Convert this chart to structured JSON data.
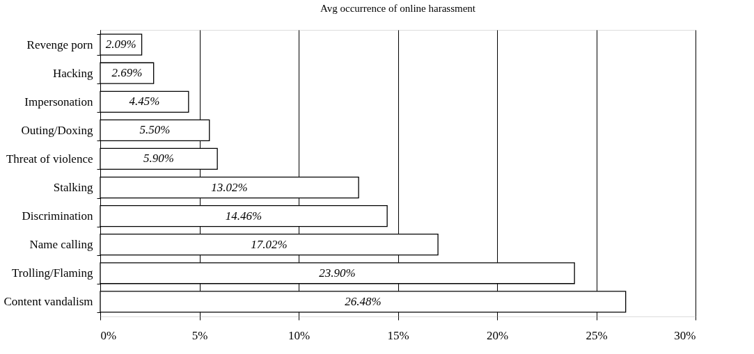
{
  "chart_data": {
    "type": "bar",
    "orientation": "horizontal",
    "title": "Avg occurrence of online harassment",
    "categories": [
      "Revenge porn",
      "Hacking",
      "Impersonation",
      "Outing/Doxing",
      "Threat of violence",
      "Stalking",
      "Discrimination",
      "Name calling",
      "Trolling/Flaming",
      "Content vandalism"
    ],
    "values": [
      2.09,
      2.69,
      4.45,
      5.5,
      5.9,
      13.02,
      14.46,
      17.02,
      23.9,
      26.48
    ],
    "value_labels": [
      "2.09%",
      "2.69%",
      "4.45%",
      "5.50%",
      "5.90%",
      "13.02%",
      "14.46%",
      "17.02%",
      "23.90%",
      "26.48%"
    ],
    "color": "#ffffff",
    "xlim": [
      0,
      30
    ],
    "xticks": [
      {
        "value": 0,
        "label": "0%"
      },
      {
        "value": 5,
        "label": "5%"
      },
      {
        "value": 10,
        "label": "10%"
      },
      {
        "value": 15,
        "label": "15%"
      },
      {
        "value": 20,
        "label": "20%"
      },
      {
        "value": 25,
        "label": "25%"
      },
      {
        "value": 30,
        "label": "30%"
      }
    ],
    "grid": "x"
  }
}
